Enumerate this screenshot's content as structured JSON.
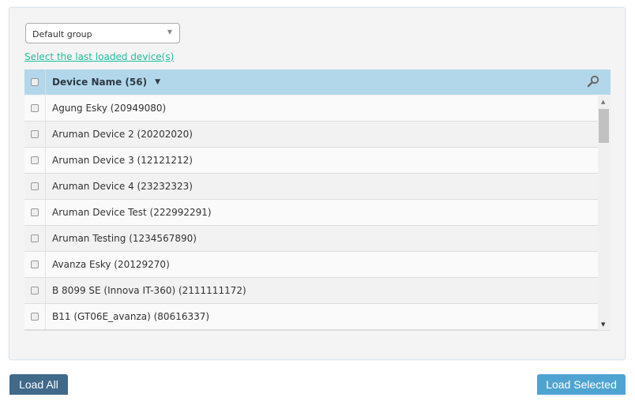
{
  "group_select": {
    "value": "Default group"
  },
  "select_last_link": "Select the last loaded device(s)",
  "table": {
    "header": "Device Name (56)",
    "rows": [
      "Agung Esky (20949080)",
      "Aruman Device 2 (20202020)",
      "Aruman Device 3 (12121212)",
      "Aruman Device 4 (23232323)",
      "Aruman Device Test (222992291)",
      "Aruman Testing (1234567890)",
      "Avanza Esky (20129270)",
      "B 8099 SE (Innova IT-360) (2111111172)",
      "B11 (GT06E_avanza) (80616337)"
    ]
  },
  "buttons": {
    "load_all": "Load All",
    "load_selected": "Load Selected"
  },
  "colors": {
    "header": "#b3d7ea",
    "link": "#1fbf9a",
    "load_all": "#41698a",
    "load_selected": "#4fa3d1"
  }
}
